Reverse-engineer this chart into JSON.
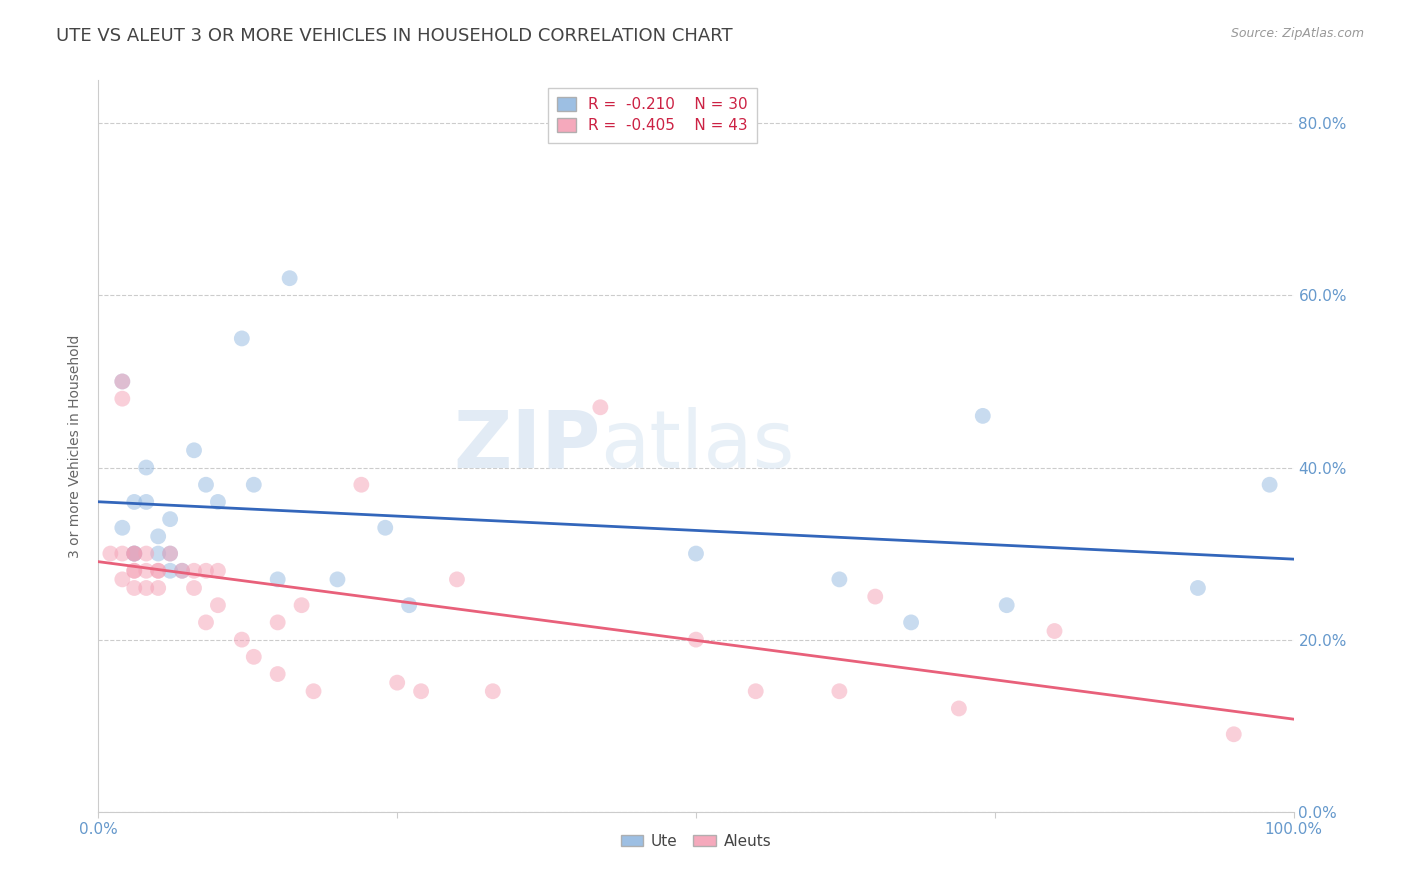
{
  "title": "UTE VS ALEUT 3 OR MORE VEHICLES IN HOUSEHOLD CORRELATION CHART",
  "source": "Source: ZipAtlas.com",
  "ylabel": "3 or more Vehicles in Household",
  "background_color": "#ffffff",
  "watermark_left": "ZIP",
  "watermark_right": "atlas",
  "ute_color": "#92b8e0",
  "aleut_color": "#f4a0b5",
  "ute_line_color": "#3366bb",
  "aleut_line_color": "#e8607a",
  "ute_R": -0.21,
  "ute_N": 30,
  "aleut_R": -0.405,
  "aleut_N": 43,
  "ute_x": [
    0.02,
    0.03,
    0.03,
    0.02,
    0.03,
    0.04,
    0.04,
    0.05,
    0.05,
    0.06,
    0.06,
    0.06,
    0.07,
    0.08,
    0.09,
    0.1,
    0.12,
    0.13,
    0.15,
    0.16,
    0.2,
    0.24,
    0.26,
    0.5,
    0.62,
    0.68,
    0.74,
    0.76,
    0.92,
    0.98
  ],
  "ute_y": [
    0.33,
    0.3,
    0.36,
    0.5,
    0.3,
    0.36,
    0.4,
    0.3,
    0.32,
    0.34,
    0.28,
    0.3,
    0.28,
    0.42,
    0.38,
    0.36,
    0.55,
    0.38,
    0.27,
    0.62,
    0.27,
    0.33,
    0.24,
    0.3,
    0.27,
    0.22,
    0.46,
    0.24,
    0.26,
    0.38
  ],
  "aleut_x": [
    0.01,
    0.02,
    0.02,
    0.02,
    0.02,
    0.03,
    0.03,
    0.03,
    0.03,
    0.03,
    0.04,
    0.04,
    0.04,
    0.05,
    0.05,
    0.05,
    0.06,
    0.07,
    0.08,
    0.08,
    0.09,
    0.09,
    0.1,
    0.1,
    0.12,
    0.13,
    0.15,
    0.15,
    0.17,
    0.18,
    0.22,
    0.25,
    0.27,
    0.3,
    0.33,
    0.42,
    0.5,
    0.55,
    0.62,
    0.65,
    0.72,
    0.8,
    0.95
  ],
  "aleut_y": [
    0.3,
    0.48,
    0.5,
    0.3,
    0.27,
    0.3,
    0.28,
    0.3,
    0.26,
    0.28,
    0.3,
    0.28,
    0.26,
    0.28,
    0.28,
    0.26,
    0.3,
    0.28,
    0.26,
    0.28,
    0.28,
    0.22,
    0.28,
    0.24,
    0.2,
    0.18,
    0.16,
    0.22,
    0.24,
    0.14,
    0.38,
    0.15,
    0.14,
    0.27,
    0.14,
    0.47,
    0.2,
    0.14,
    0.14,
    0.25,
    0.12,
    0.21,
    0.09
  ],
  "xlim": [
    0.0,
    1.0
  ],
  "ylim": [
    0.0,
    0.85
  ],
  "yticks": [
    0.0,
    0.2,
    0.4,
    0.6,
    0.8
  ],
  "ytick_labels": [
    "0.0%",
    "20.0%",
    "40.0%",
    "60.0%",
    "80.0%"
  ],
  "xticks": [
    0.0,
    0.25,
    0.5,
    0.75,
    1.0
  ],
  "xtick_labels": [
    "0.0%",
    "",
    "",
    "",
    "100.0%"
  ],
  "marker_size": 130,
  "marker_alpha": 0.5,
  "grid_color": "#cccccc",
  "grid_style": "--",
  "tick_label_color": "#6699cc",
  "title_color": "#444444",
  "title_fontsize": 13,
  "ylabel_fontsize": 10,
  "legend_fontsize": 11,
  "legend_R_color": "#cc2244",
  "legend_N_color": "#333399"
}
